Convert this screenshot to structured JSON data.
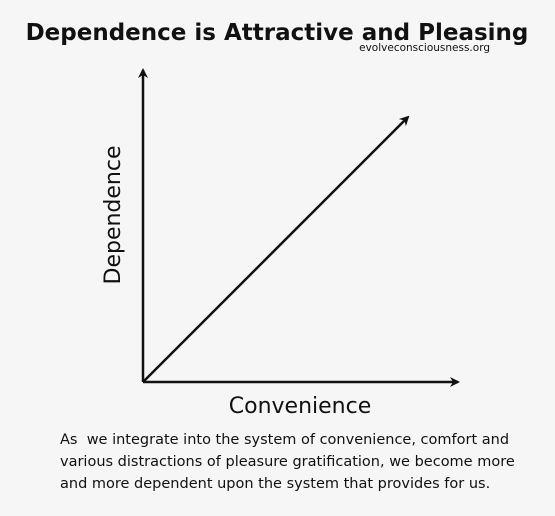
{
  "header": {
    "title": "Dependence is Attractive and Pleasing",
    "source": "evolveconsciousness.org"
  },
  "diagram": {
    "y_axis_label": "Dependence",
    "x_axis_label": "Convenience"
  },
  "caption": {
    "lines": [
      "As  we integrate into the system of convenience, comfort and",
      "various distractions of pleasure gratification, we become more",
      "and more dependent upon the system that provides for us."
    ]
  }
}
